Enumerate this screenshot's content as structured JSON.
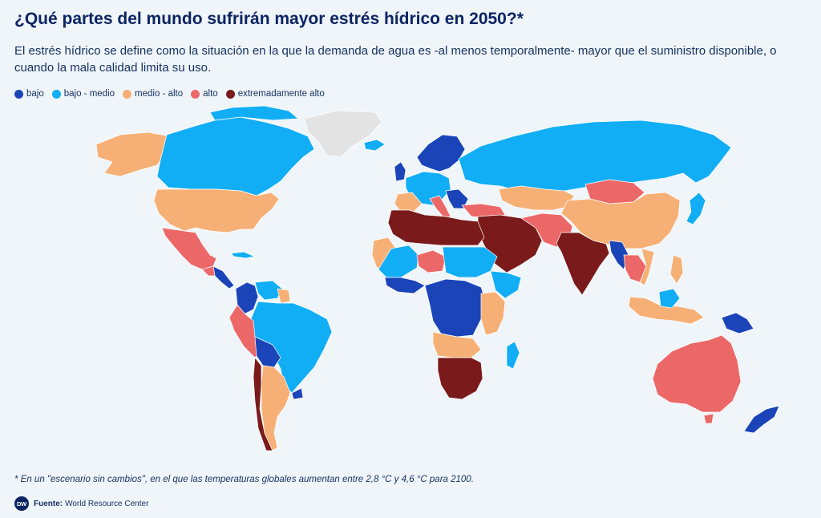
{
  "title": "¿Qué partes del mundo sufrirán mayor estrés hídrico en 2050?*",
  "subtitle": "El estrés hídrico se define como la situación en la que la demanda de agua es -al menos temporalmente- mayor que el suministro disponible, o cuando la mala calidad limita su uso.",
  "legend": [
    {
      "label": "bajo",
      "color": "#1a44b8"
    },
    {
      "label": "bajo - medio",
      "color": "#12aef5"
    },
    {
      "label": "medio - alto",
      "color": "#f6b075"
    },
    {
      "label": "alto",
      "color": "#ec6868"
    },
    {
      "label": "extremadamente alto",
      "color": "#7a1a1a"
    }
  ],
  "no_data_color": "#e3e3e3",
  "footnote": "* En un \"escenario sin cambios\", en el que las temperaturas globales aumentan entre 2,8 °C y 4,6 °C para 2100.",
  "source": {
    "logo": "DW",
    "label": "Fuente:",
    "text": "World Resource Center"
  }
}
